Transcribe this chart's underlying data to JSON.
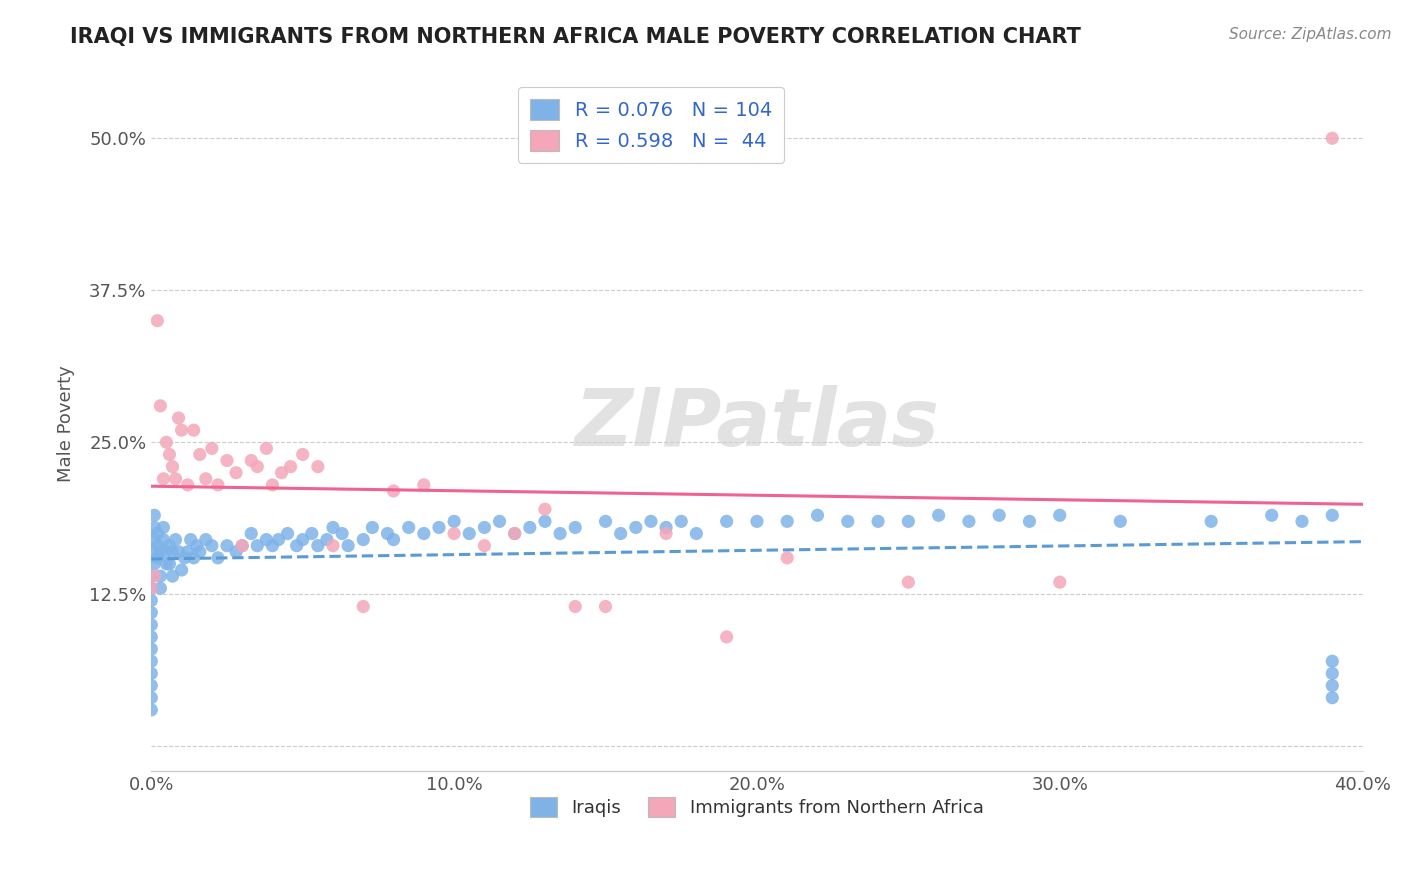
{
  "title": "IRAQI VS IMMIGRANTS FROM NORTHERN AFRICA MALE POVERTY CORRELATION CHART",
  "source": "Source: ZipAtlas.com",
  "ylabel": "Male Poverty",
  "xlim": [
    0.0,
    0.4
  ],
  "ylim": [
    -0.02,
    0.55
  ],
  "yticks": [
    0.0,
    0.125,
    0.25,
    0.375,
    0.5
  ],
  "ytick_labels": [
    "",
    "12.5%",
    "25.0%",
    "37.5%",
    "50.0%"
  ],
  "xticks": [
    0.0,
    0.1,
    0.2,
    0.3,
    0.4
  ],
  "xtick_labels": [
    "0.0%",
    "10.0%",
    "20.0%",
    "30.0%",
    "40.0%"
  ],
  "watermark": "ZIPatlas",
  "iraqis_color": "#7fb3e8",
  "immigrants_color": "#f4a7b9",
  "iraqis_line_color": "#5b9bd5",
  "immigrants_line_color": "#f06292",
  "R_iraqis": 0.076,
  "N_iraqis": 104,
  "R_immigrants": 0.598,
  "N_immigrants": 44,
  "background_color": "#ffffff",
  "grid_color": "#cccccc",
  "iraqis_x": [
    0.0,
    0.0,
    0.0,
    0.0,
    0.0,
    0.0,
    0.0,
    0.0,
    0.0,
    0.0,
    0.0,
    0.0,
    0.001,
    0.001,
    0.001,
    0.001,
    0.001,
    0.002,
    0.002,
    0.002,
    0.003,
    0.003,
    0.003,
    0.004,
    0.004,
    0.005,
    0.005,
    0.006,
    0.006,
    0.007,
    0.007,
    0.008,
    0.009,
    0.01,
    0.011,
    0.012,
    0.013,
    0.014,
    0.015,
    0.016,
    0.018,
    0.02,
    0.022,
    0.025,
    0.028,
    0.03,
    0.033,
    0.035,
    0.038,
    0.04,
    0.042,
    0.045,
    0.048,
    0.05,
    0.053,
    0.055,
    0.058,
    0.06,
    0.063,
    0.065,
    0.07,
    0.073,
    0.078,
    0.08,
    0.085,
    0.09,
    0.095,
    0.1,
    0.105,
    0.11,
    0.115,
    0.12,
    0.125,
    0.13,
    0.135,
    0.14,
    0.15,
    0.155,
    0.16,
    0.165,
    0.17,
    0.175,
    0.18,
    0.19,
    0.2,
    0.21,
    0.22,
    0.23,
    0.24,
    0.25,
    0.26,
    0.27,
    0.28,
    0.29,
    0.3,
    0.32,
    0.35,
    0.37,
    0.38,
    0.39,
    0.39,
    0.39,
    0.39,
    0.39
  ],
  "iraqis_y": [
    0.12,
    0.13,
    0.14,
    0.1,
    0.09,
    0.08,
    0.11,
    0.07,
    0.06,
    0.05,
    0.04,
    0.03,
    0.17,
    0.18,
    0.19,
    0.16,
    0.15,
    0.155,
    0.165,
    0.175,
    0.13,
    0.14,
    0.16,
    0.17,
    0.18,
    0.15,
    0.16,
    0.15,
    0.165,
    0.14,
    0.16,
    0.17,
    0.16,
    0.145,
    0.155,
    0.16,
    0.17,
    0.155,
    0.165,
    0.16,
    0.17,
    0.165,
    0.155,
    0.165,
    0.16,
    0.165,
    0.175,
    0.165,
    0.17,
    0.165,
    0.17,
    0.175,
    0.165,
    0.17,
    0.175,
    0.165,
    0.17,
    0.18,
    0.175,
    0.165,
    0.17,
    0.18,
    0.175,
    0.17,
    0.18,
    0.175,
    0.18,
    0.185,
    0.175,
    0.18,
    0.185,
    0.175,
    0.18,
    0.185,
    0.175,
    0.18,
    0.185,
    0.175,
    0.18,
    0.185,
    0.18,
    0.185,
    0.175,
    0.185,
    0.185,
    0.185,
    0.19,
    0.185,
    0.185,
    0.185,
    0.19,
    0.185,
    0.19,
    0.185,
    0.19,
    0.185,
    0.185,
    0.19,
    0.185,
    0.19,
    0.04,
    0.05,
    0.06,
    0.07
  ],
  "immigrants_x": [
    0.0,
    0.001,
    0.002,
    0.003,
    0.004,
    0.005,
    0.006,
    0.007,
    0.008,
    0.009,
    0.01,
    0.012,
    0.014,
    0.016,
    0.018,
    0.02,
    0.022,
    0.025,
    0.028,
    0.03,
    0.033,
    0.035,
    0.038,
    0.04,
    0.043,
    0.046,
    0.05,
    0.055,
    0.06,
    0.07,
    0.08,
    0.09,
    0.1,
    0.11,
    0.12,
    0.13,
    0.14,
    0.15,
    0.17,
    0.19,
    0.21,
    0.25,
    0.3,
    0.39
  ],
  "immigrants_y": [
    0.13,
    0.14,
    0.35,
    0.28,
    0.22,
    0.25,
    0.24,
    0.23,
    0.22,
    0.27,
    0.26,
    0.215,
    0.26,
    0.24,
    0.22,
    0.245,
    0.215,
    0.235,
    0.225,
    0.165,
    0.235,
    0.23,
    0.245,
    0.215,
    0.225,
    0.23,
    0.24,
    0.23,
    0.165,
    0.115,
    0.21,
    0.215,
    0.175,
    0.165,
    0.175,
    0.195,
    0.115,
    0.115,
    0.175,
    0.09,
    0.155,
    0.135,
    0.135,
    0.5
  ]
}
